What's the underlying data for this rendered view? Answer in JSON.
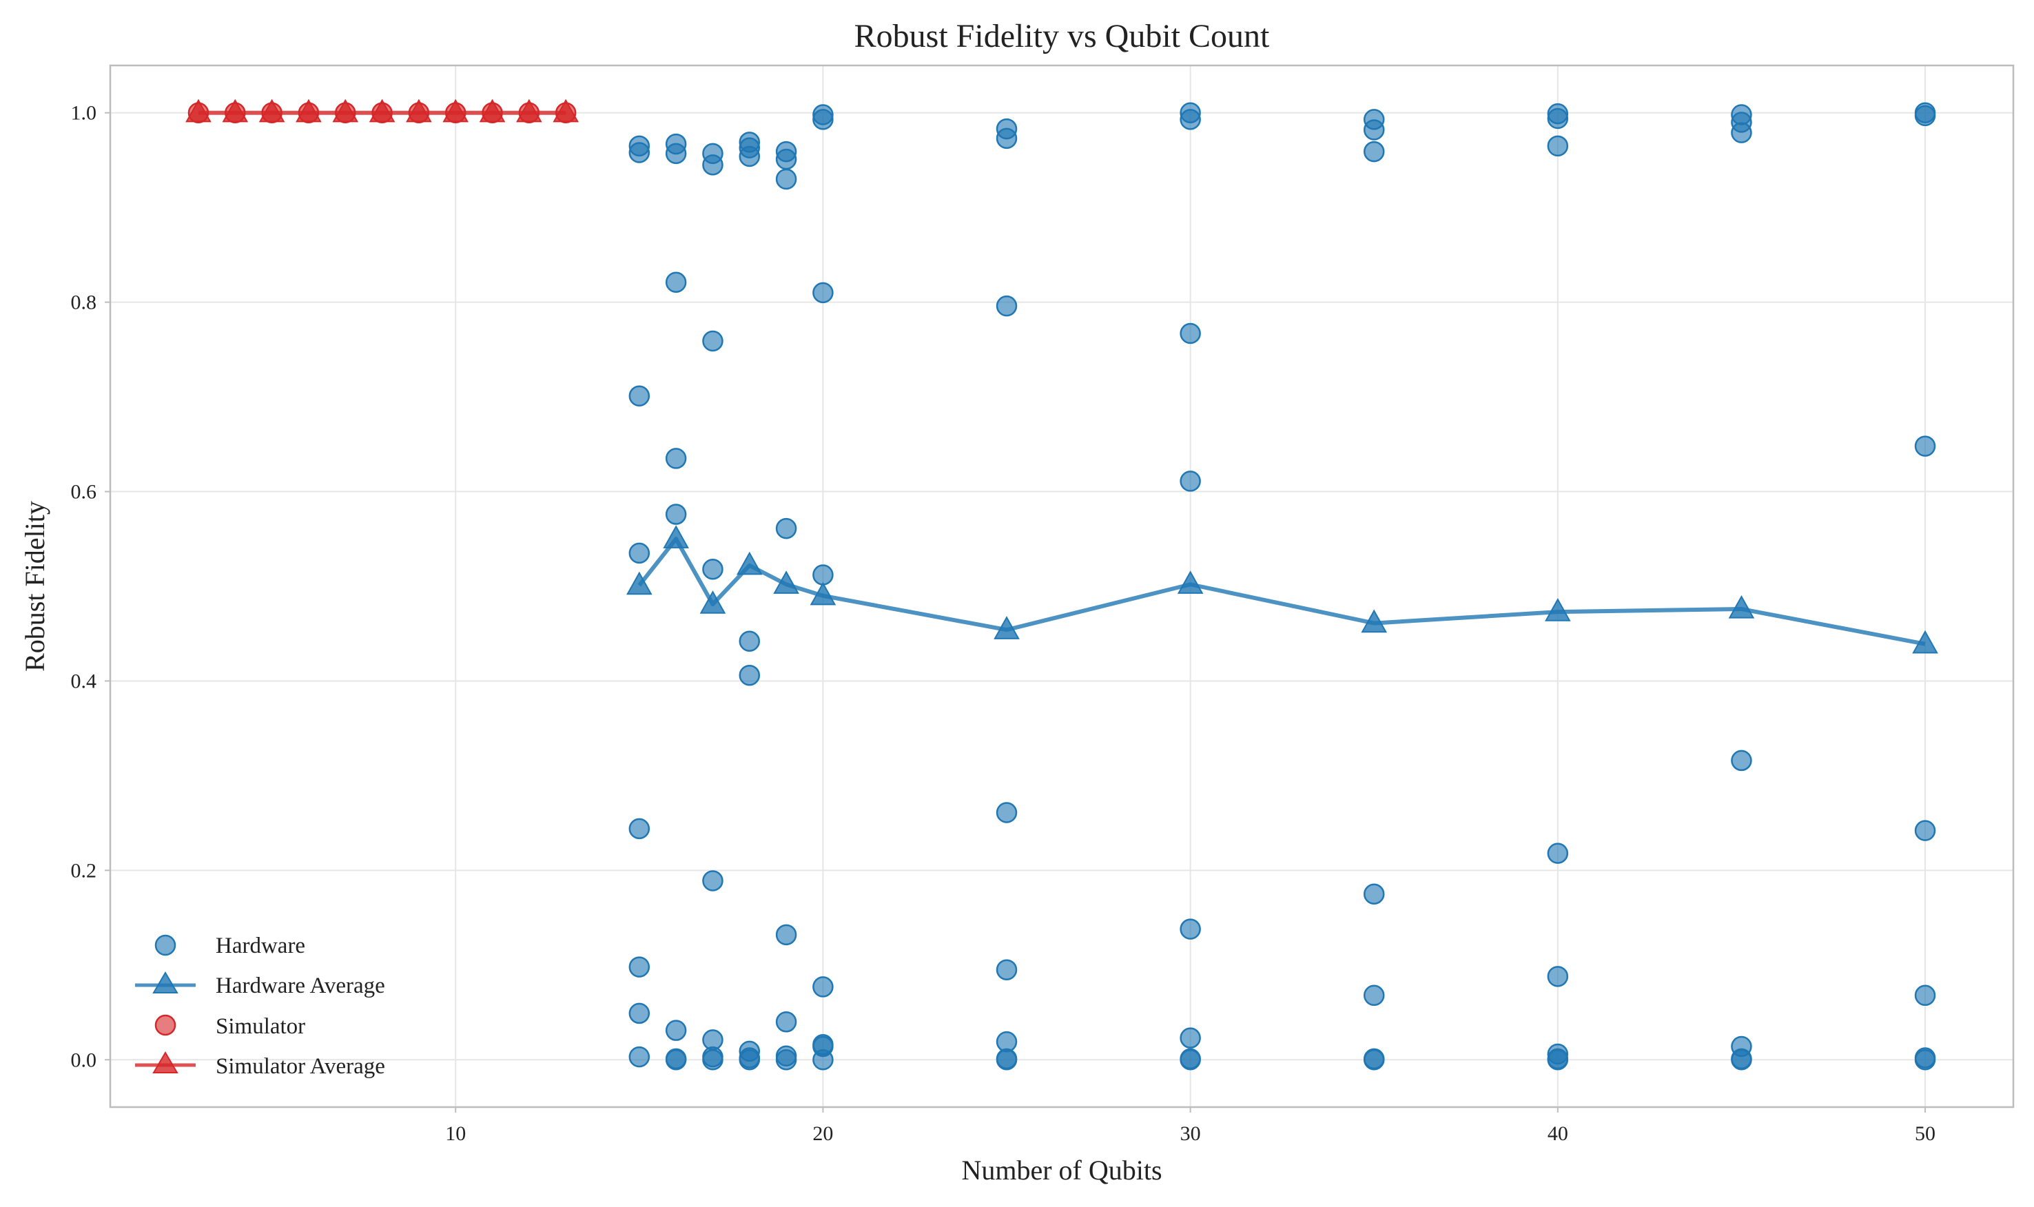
{
  "chart_data": {
    "type": "scatter",
    "title": "Robust Fidelity vs Qubit Count",
    "xlabel": "Number of Qubits",
    "ylabel": "Robust Fidelity",
    "xlim": [
      0.6,
      52.4
    ],
    "ylim": [
      -0.05,
      1.05
    ],
    "xticks": [
      10,
      20,
      30,
      40,
      50
    ],
    "yticks": [
      0.0,
      0.2,
      0.4,
      0.6,
      0.8,
      1.0
    ],
    "xtick_labels": [
      "10",
      "20",
      "30",
      "40",
      "50"
    ],
    "ytick_labels": [
      "0.0",
      "0.2",
      "0.4",
      "0.6",
      "0.8",
      "1.0"
    ],
    "grid": true,
    "legend_position": "lower-left",
    "colors": {
      "hardware": "#1f77b4",
      "simulator": "#d62728",
      "grid": "#e6e6e6",
      "frame": "#bdbdbd"
    },
    "series": [
      {
        "name": "Hardware",
        "kind": "scatter",
        "color": "#1f77b4",
        "points": [
          [
            15,
            0.965
          ],
          [
            15,
            0.958
          ],
          [
            15,
            0.701
          ],
          [
            15,
            0.535
          ],
          [
            15,
            0.244
          ],
          [
            15,
            0.098
          ],
          [
            15,
            0.049
          ],
          [
            15,
            0.003
          ],
          [
            16,
            0.967
          ],
          [
            16,
            0.957
          ],
          [
            16,
            0.821
          ],
          [
            16,
            0.635
          ],
          [
            16,
            0.576
          ],
          [
            16,
            0.031
          ],
          [
            16,
            0.001
          ],
          [
            16,
            0.0
          ],
          [
            17,
            0.957
          ],
          [
            17,
            0.945
          ],
          [
            17,
            0.759
          ],
          [
            17,
            0.518
          ],
          [
            17,
            0.189
          ],
          [
            17,
            0.021
          ],
          [
            17,
            0.003
          ],
          [
            17,
            0.0
          ],
          [
            18,
            0.969
          ],
          [
            18,
            0.963
          ],
          [
            18,
            0.954
          ],
          [
            18,
            0.442
          ],
          [
            18,
            0.406
          ],
          [
            18,
            0.009
          ],
          [
            18,
            0.002
          ],
          [
            18,
            0.0
          ],
          [
            19,
            0.959
          ],
          [
            19,
            0.951
          ],
          [
            19,
            0.93
          ],
          [
            19,
            0.561
          ],
          [
            19,
            0.132
          ],
          [
            19,
            0.04
          ],
          [
            19,
            0.004
          ],
          [
            19,
            0.0
          ],
          [
            20,
            0.998
          ],
          [
            20,
            0.993
          ],
          [
            20,
            0.81
          ],
          [
            20,
            0.512
          ],
          [
            20,
            0.077
          ],
          [
            20,
            0.016
          ],
          [
            20,
            0.014
          ],
          [
            20,
            0.0
          ],
          [
            25,
            0.983
          ],
          [
            25,
            0.973
          ],
          [
            25,
            0.796
          ],
          [
            25,
            0.261
          ],
          [
            25,
            0.095
          ],
          [
            25,
            0.019
          ],
          [
            25,
            0.001
          ],
          [
            25,
            0.0
          ],
          [
            30,
            1.0
          ],
          [
            30,
            0.993
          ],
          [
            30,
            0.767
          ],
          [
            30,
            0.611
          ],
          [
            30,
            0.138
          ],
          [
            30,
            0.023
          ],
          [
            30,
            0.001
          ],
          [
            30,
            0.0
          ],
          [
            35,
            0.993
          ],
          [
            35,
            0.982
          ],
          [
            35,
            0.959
          ],
          [
            35,
            0.175
          ],
          [
            35,
            0.068
          ],
          [
            35,
            0.001
          ],
          [
            35,
            0.0
          ],
          [
            40,
            0.999
          ],
          [
            40,
            0.994
          ],
          [
            40,
            0.965
          ],
          [
            40,
            0.218
          ],
          [
            40,
            0.088
          ],
          [
            40,
            0.006
          ],
          [
            40,
            0.001
          ],
          [
            40,
            0.0
          ],
          [
            45,
            0.998
          ],
          [
            45,
            0.99
          ],
          [
            45,
            0.979
          ],
          [
            45,
            0.316
          ],
          [
            45,
            0.014
          ],
          [
            45,
            0.001
          ],
          [
            45,
            0.0
          ],
          [
            50,
            1.0
          ],
          [
            50,
            0.997
          ],
          [
            50,
            0.648
          ],
          [
            50,
            0.242
          ],
          [
            50,
            0.068
          ],
          [
            50,
            0.002
          ],
          [
            50,
            0.0
          ]
        ]
      },
      {
        "name": "Hardware Average",
        "kind": "line",
        "marker": "triangle",
        "color": "#1f77b4",
        "x": [
          15,
          16,
          17,
          18,
          19,
          20,
          25,
          30,
          35,
          40,
          45,
          50
        ],
        "y": [
          0.501,
          0.55,
          0.481,
          0.522,
          0.502,
          0.49,
          0.454,
          0.502,
          0.461,
          0.473,
          0.476,
          0.439
        ]
      },
      {
        "name": "Simulator",
        "kind": "scatter",
        "color": "#d62728",
        "points": [
          [
            3,
            1.0
          ],
          [
            4,
            1.0
          ],
          [
            5,
            1.0
          ],
          [
            6,
            1.0
          ],
          [
            7,
            1.0
          ],
          [
            8,
            1.0
          ],
          [
            9,
            1.0
          ],
          [
            10,
            1.0
          ],
          [
            11,
            1.0
          ],
          [
            12,
            1.0
          ],
          [
            13,
            1.0
          ]
        ]
      },
      {
        "name": "Simulator Average",
        "kind": "line",
        "marker": "triangle",
        "color": "#d62728",
        "x": [
          3,
          4,
          5,
          6,
          7,
          8,
          9,
          10,
          11,
          12,
          13
        ],
        "y": [
          1.0,
          1.0,
          1.0,
          1.0,
          1.0,
          1.0,
          1.0,
          1.0,
          1.0,
          1.0,
          1.0
        ]
      }
    ]
  }
}
